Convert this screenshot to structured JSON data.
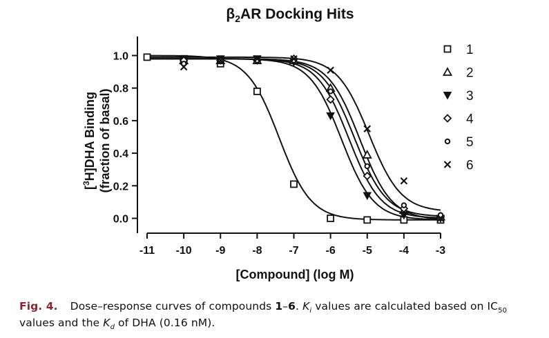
{
  "chart_data": {
    "type": "scatter",
    "title_prefix": "β",
    "title_sub": "2",
    "title_suffix": "AR Docking Hits",
    "xlabel": "[Compound] (log M)",
    "ylabel_line1_pre": "[",
    "ylabel_sup": "3",
    "ylabel_line1_post": "H]DHA Binding",
    "ylabel_line2": "(fraction of basal)",
    "xlim": [
      -11,
      -3
    ],
    "ylim": [
      -0.05,
      1.1
    ],
    "x_ticks": [
      -11,
      -10,
      -9,
      -8,
      -7,
      -6,
      -5,
      -4,
      -3
    ],
    "x_tick_labels": [
      "-11",
      "-10",
      "-9",
      "-8",
      "-7",
      "-6",
      "-5",
      "-4",
      "-3"
    ],
    "y_ticks": [
      0.0,
      0.2,
      0.4,
      0.6,
      0.8,
      1.0
    ],
    "y_tick_labels": [
      "0.0",
      "0.2",
      "0.4",
      "0.6",
      "0.8",
      "1.0"
    ],
    "grid": false,
    "legend_position": "right",
    "series": [
      {
        "name": "1",
        "marker": "square",
        "logIC50": -7.4,
        "top": 1.0,
        "bottom": -0.01,
        "points": [
          [
            -11,
            0.99
          ],
          [
            -10,
            0.98
          ],
          [
            -9,
            0.95
          ],
          [
            -8,
            0.78
          ],
          [
            -7,
            0.21
          ],
          [
            -6,
            0.0
          ],
          [
            -5,
            -0.01
          ],
          [
            -4,
            -0.01
          ],
          [
            -3,
            -0.01
          ]
        ]
      },
      {
        "name": "2",
        "marker": "triangle-up",
        "logIC50": -5.2,
        "top": 0.98,
        "bottom": -0.01,
        "points": [
          [
            -10,
            0.97
          ],
          [
            -9,
            0.97
          ],
          [
            -8,
            0.97
          ],
          [
            -7,
            0.97
          ],
          [
            -6,
            0.8
          ],
          [
            -5,
            0.39
          ],
          [
            -4,
            0.05
          ],
          [
            -3,
            0.01
          ]
        ]
      },
      {
        "name": "3",
        "marker": "triangle-down",
        "logIC50": -5.7,
        "top": 0.98,
        "bottom": -0.01,
        "points": [
          [
            -10,
            0.98
          ],
          [
            -9,
            0.98
          ],
          [
            -8,
            0.98
          ],
          [
            -7,
            0.96
          ],
          [
            -6,
            0.63
          ],
          [
            -5,
            0.14
          ],
          [
            -4,
            0.02
          ],
          [
            -3,
            0.0
          ]
        ]
      },
      {
        "name": "4",
        "marker": "diamond",
        "logIC50": -5.5,
        "top": 0.98,
        "bottom": 0.0,
        "points": [
          [
            -10,
            0.97
          ],
          [
            -9,
            0.97
          ],
          [
            -8,
            0.97
          ],
          [
            -7,
            0.98
          ],
          [
            -6,
            0.73
          ],
          [
            -5,
            0.26
          ],
          [
            -4,
            0.06
          ],
          [
            -3,
            0.01
          ]
        ]
      },
      {
        "name": "5",
        "marker": "circle",
        "logIC50": -5.35,
        "top": 0.98,
        "bottom": 0.01,
        "points": [
          [
            -10,
            0.95
          ],
          [
            -9,
            0.97
          ],
          [
            -8,
            0.97
          ],
          [
            -7,
            0.97
          ],
          [
            -6,
            0.78
          ],
          [
            -5,
            0.32
          ],
          [
            -4,
            0.08
          ],
          [
            -3,
            0.02
          ]
        ]
      },
      {
        "name": "6",
        "marker": "x",
        "logIC50": -4.95,
        "top": 0.99,
        "bottom": 0.04,
        "points": [
          [
            -10,
            0.93
          ],
          [
            -9,
            0.97
          ],
          [
            -8,
            0.98
          ],
          [
            -7,
            0.98
          ],
          [
            -6,
            0.91
          ],
          [
            -5,
            0.55
          ],
          [
            -4,
            0.23
          ],
          [
            -3,
            0.0
          ]
        ]
      }
    ]
  },
  "caption": {
    "label": "Fig. 4.",
    "t1": "Dose–response curves of compounds ",
    "b1": "1",
    "t2": "–",
    "b2": "6",
    "t3": ". ",
    "ki_letter": "K",
    "ki_sub": "i",
    "t4": " values are calculated based on IC",
    "ic_sub": "50",
    "t5": " values and the ",
    "kd_letter": "K",
    "kd_sub": "d",
    "t6": " of DHA (0.16 nM)."
  }
}
